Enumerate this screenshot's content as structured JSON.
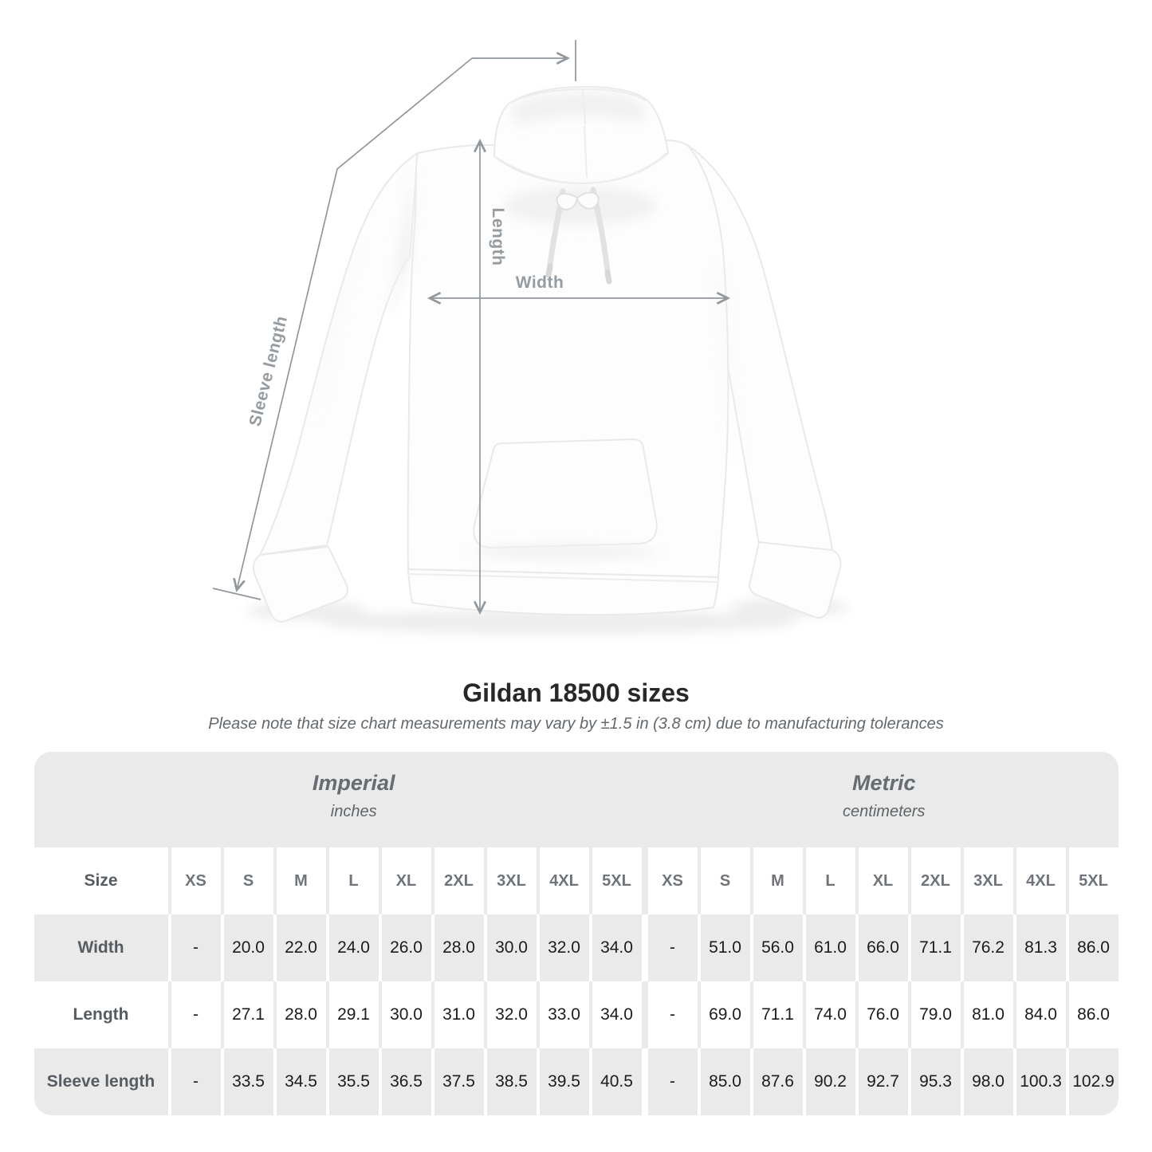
{
  "diagram": {
    "labels": {
      "length": "Length",
      "width": "Width",
      "sleeve": "Sleeve length"
    },
    "line_color": "#90979d"
  },
  "chart_data": {
    "type": "table",
    "title": "Gildan 18500 sizes",
    "subtitle": "Please note that size chart measurements may vary by ±1.5 in (3.8 cm) due to manufacturing tolerances",
    "unit_groups": [
      {
        "name": "Imperial",
        "unit": "inches"
      },
      {
        "name": "Metric",
        "unit": "centimeters"
      }
    ],
    "size_header": {
      "label": "Size",
      "imperial": [
        "XS",
        "S",
        "M",
        "L",
        "XL",
        "2XL",
        "3XL",
        "4XL",
        "5XL"
      ],
      "metric": [
        "XS",
        "S",
        "M",
        "L",
        "XL",
        "2XL",
        "3XL",
        "4XL",
        "5XL"
      ]
    },
    "rows": [
      {
        "label": "Width",
        "imperial": [
          "-",
          "20.0",
          "22.0",
          "24.0",
          "26.0",
          "28.0",
          "30.0",
          "32.0",
          "34.0"
        ],
        "metric": [
          "-",
          "51.0",
          "56.0",
          "61.0",
          "66.0",
          "71.1",
          "76.2",
          "81.3",
          "86.0"
        ]
      },
      {
        "label": "Length",
        "imperial": [
          "-",
          "27.1",
          "28.0",
          "29.1",
          "30.0",
          "31.0",
          "32.0",
          "33.0",
          "34.0"
        ],
        "metric": [
          "-",
          "69.0",
          "71.1",
          "74.0",
          "76.0",
          "79.0",
          "81.0",
          "84.0",
          "86.0"
        ]
      },
      {
        "label": "Sleeve length",
        "imperial": [
          "-",
          "33.5",
          "34.5",
          "35.5",
          "36.5",
          "37.5",
          "38.5",
          "39.5",
          "40.5"
        ],
        "metric": [
          "-",
          "85.0",
          "87.6",
          "90.2",
          "92.7",
          "95.3",
          "98.0",
          "100.3",
          "102.9"
        ]
      }
    ]
  }
}
